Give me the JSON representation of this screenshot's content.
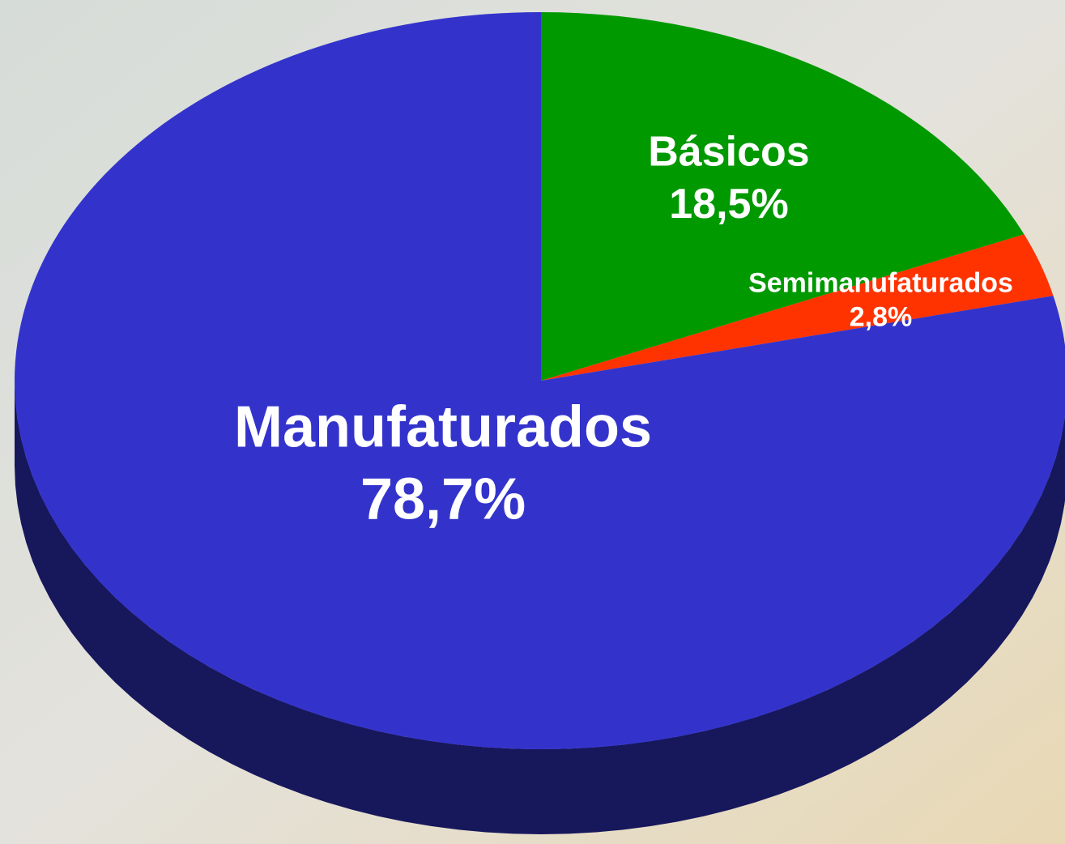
{
  "chart_data": {
    "type": "pie",
    "categories": [
      "Básicos",
      "Semimanufaturados",
      "Manufaturados"
    ],
    "values": [
      18.5,
      2.8,
      78.7
    ],
    "value_labels": [
      "18,5%",
      "2,8%",
      "78,7%"
    ],
    "colors": [
      "#009900",
      "#ff3300",
      "#3333cc"
    ]
  }
}
